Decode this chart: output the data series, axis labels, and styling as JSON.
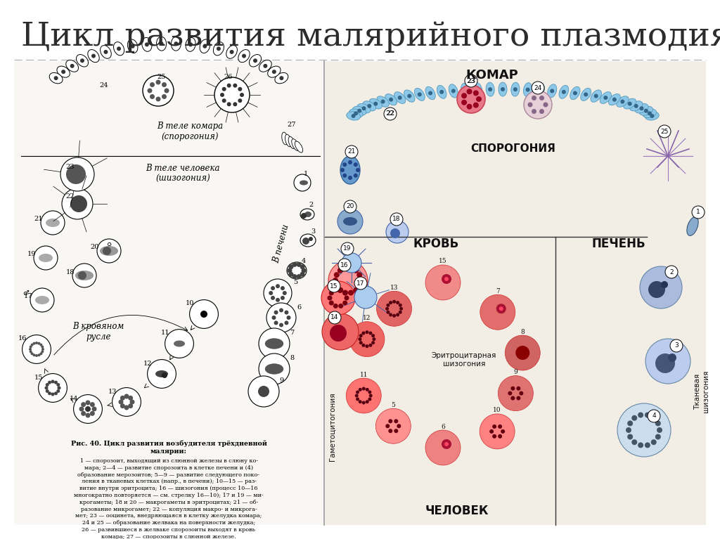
{
  "title": "Цикл развития малярийного плазмодия",
  "title_fontsize": 34,
  "title_color": "#2c2c2c",
  "title_font": "serif",
  "background_color": "#ffffff",
  "left_bg": "#f8f7f4",
  "right_bg": "#f2ede5",
  "divider_color": "#aaaaaa",
  "komara_label": "КОМАР",
  "sporogoniya_label": "СПОРОГОНИЯ",
  "krov_label": "КРОВЬ",
  "pechen_label": "ПЕЧЕНЬ",
  "chelovek_label": "ЧЕЛОВЕК",
  "eritro_label": "Эритроцитарная\nшизогония",
  "gametocit_label": "Гаметоцитогония",
  "tkan_label": "Тканевая\nшизогония",
  "vtele_komara": "В теле комара\n(спорогония)",
  "vtele_cheloveka": "В теле человека\n(шизогония)",
  "v_krovynom": "В кровяном\nрусле",
  "v_pecheni_left": "В печени",
  "caption_bold": "Рис. 40. Цикл развития возбудителя трёхдневной\nмалярии:",
  "caption_text": "1 — спорозоит, выходящий из слюнной железы в слюну ко-\nмара; 2—4 — развитие спорозоита в клетке печени и (4)\nобразование мерозоитов; 5—9 — развитие следующего поко-\nления в тканевых клетках (напр., в печени); 10—15 — раз-\nвитие внутри эритроцита; 16 — шизогония (процесс 10—16\nмногократно повторяется — см. стрелку 16—10); 17 и 19 — ми-\nкрогаметы; 18 и 20 — макрогаметы в эритроцитах; 21 — об-\nразование микрогамет; 22 — копуляция макро- и микрога-\nмет; 23 — ооцинета, внедряющаяся в клетку желудка комара;\n24 и 25 — образование желвака на поверхности желудка;\n26 — развившиеся в желваке спорозоиты выходят в кровь\nкомара; 27 — спорозоиты в слюнной железе."
}
